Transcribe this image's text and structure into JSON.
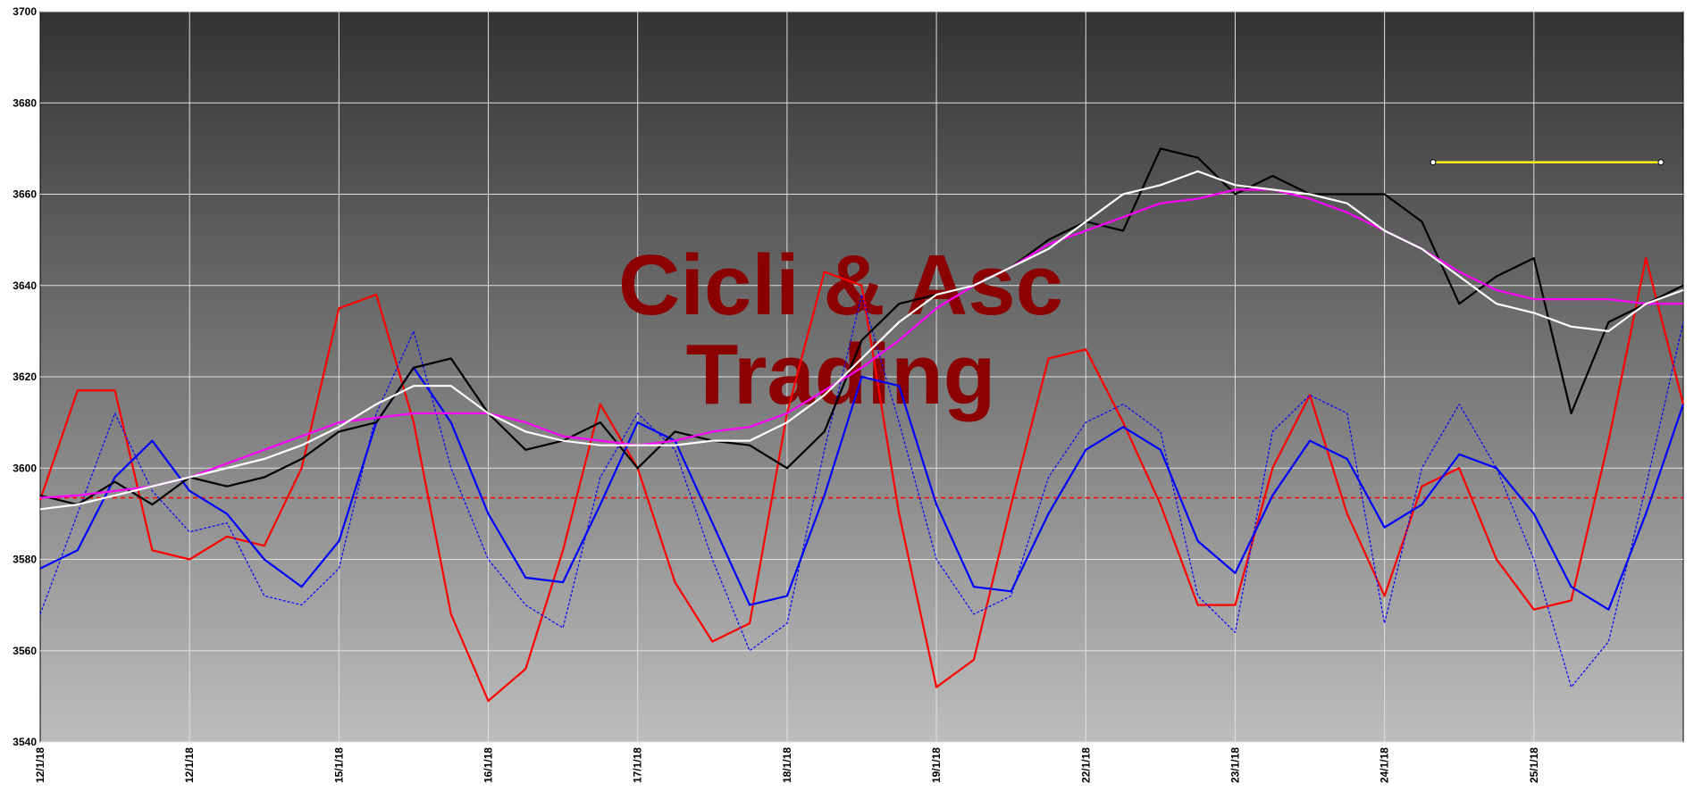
{
  "chart_data": {
    "type": "line",
    "watermark": [
      "Cicli & Asc",
      "Trading"
    ],
    "categories": [
      "12/1/18",
      null,
      null,
      null,
      "12/1/18",
      null,
      null,
      null,
      "15/1/18",
      null,
      null,
      null,
      "16/1/18",
      null,
      null,
      null,
      "17/1/18",
      null,
      null,
      null,
      "18/1/18",
      null,
      null,
      null,
      "19/1/18",
      null,
      null,
      null,
      "22/1/18",
      null,
      null,
      null,
      "23/1/18",
      null,
      null,
      null,
      "24/1/18",
      null,
      null,
      null,
      "25/1/18",
      null,
      null,
      null,
      null
    ],
    "ylim": [
      3540,
      3700
    ],
    "yticks": [
      3540,
      3560,
      3580,
      3600,
      3620,
      3640,
      3660,
      3680,
      3700
    ],
    "grid": true,
    "series": [
      {
        "color": "#ff0000",
        "style": "solid",
        "values": [
          3593,
          3617,
          3617,
          3582,
          3580,
          3585,
          3583,
          3600,
          3635,
          3638,
          3610,
          3568,
          3549,
          3556,
          3582,
          3614,
          3600,
          3575,
          3562,
          3566,
          3612,
          3643,
          3640,
          3590,
          3552,
          3558,
          3592,
          3624,
          3626,
          3610,
          3592,
          3570,
          3570,
          3600,
          3616,
          3590,
          3572,
          3596,
          3600,
          3580,
          3569,
          3571,
          3606,
          3646,
          3614
        ]
      },
      {
        "color": "#0000ff",
        "style": "dashed",
        "values": [
          3568,
          3590,
          3612,
          3595,
          3586,
          3588,
          3572,
          3570,
          3578,
          3612,
          3630,
          3600,
          3580,
          3570,
          3565,
          3598,
          3612,
          3604,
          3580,
          3560,
          3566,
          3604,
          3638,
          3610,
          3580,
          3568,
          3572,
          3598,
          3610,
          3614,
          3608,
          3572,
          3564,
          3608,
          3616,
          3612,
          3566,
          3600,
          3614,
          3600,
          3580,
          3552,
          3562,
          3596,
          3632
        ]
      },
      {
        "color": "#0000ff",
        "style": "solid",
        "values": [
          3578,
          3582,
          3598,
          3606,
          3595,
          3590,
          3580,
          3574,
          3584,
          3610,
          3622,
          3610,
          3590,
          3576,
          3575,
          3592,
          3610,
          3606,
          3588,
          3570,
          3572,
          3594,
          3620,
          3618,
          3592,
          3574,
          3573,
          3590,
          3604,
          3609,
          3604,
          3584,
          3577,
          3594,
          3606,
          3602,
          3587,
          3592,
          3603,
          3600,
          3590,
          3574,
          3569,
          3590,
          3614
        ]
      },
      {
        "color": "#000000",
        "style": "solid",
        "values": [
          3594,
          3592,
          3597,
          3592,
          3598,
          3596,
          3598,
          3602,
          3608,
          3610,
          3622,
          3624,
          3612,
          3604,
          3606,
          3610,
          3600,
          3608,
          3606,
          3605,
          3600,
          3608,
          3628,
          3636,
          3638,
          3640,
          3644,
          3650,
          3654,
          3652,
          3670,
          3668,
          3660,
          3664,
          3660,
          3660,
          3660,
          3654,
          3636,
          3642,
          3646,
          3612,
          3632,
          3636,
          3640
        ]
      },
      {
        "color": "#ff00ff",
        "style": "solid",
        "values": [
          3593.5,
          3594,
          3595,
          3596,
          3598,
          3601,
          3604,
          3607,
          3610,
          3611,
          3612,
          3612,
          3612,
          3610,
          3607,
          3606,
          3605,
          3606,
          3608,
          3609,
          3612,
          3617,
          3622,
          3628,
          3635,
          3640,
          3644,
          3649,
          3652,
          3655,
          3658,
          3659,
          3661,
          3661,
          3659,
          3656,
          3652,
          3648,
          3643,
          3639,
          3637,
          3637,
          3637,
          3636,
          3636
        ]
      },
      {
        "color": "#ffffff",
        "style": "solid",
        "values": [
          3591,
          3592,
          3594,
          3596,
          3598,
          3600,
          3602,
          3605,
          3609,
          3614,
          3618,
          3618,
          3612,
          3608,
          3606,
          3605,
          3605,
          3605,
          3606,
          3606,
          3610,
          3616,
          3624,
          3632,
          3638,
          3640,
          3644,
          3648,
          3654,
          3660,
          3662,
          3665,
          3662,
          3661,
          3660,
          3658,
          3652,
          3648,
          3642,
          3636,
          3634,
          3631,
          3630,
          3636,
          3639
        ]
      }
    ],
    "reference_line": {
      "value": 3593.5,
      "color": "#ff0000"
    },
    "segment": {
      "x": [
        37.3,
        43.4
      ],
      "values": [
        3667,
        3667
      ],
      "color": "#ffff00"
    }
  }
}
